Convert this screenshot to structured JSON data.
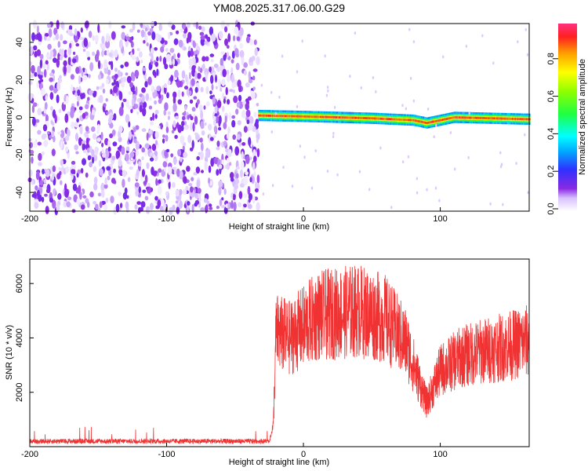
{
  "title": "YM08.2025.317.06.00.G29",
  "chart_data": [
    {
      "type": "heatmap",
      "xlabel": "Height of straight line (km)",
      "ylabel": "Frequency (Hz)",
      "xlim": [
        -200,
        165
      ],
      "ylim": [
        -50,
        50
      ],
      "xticks": [
        "-200",
        "-100",
        "0",
        "100"
      ],
      "yticks": [
        "-40",
        "-20",
        "0",
        "20",
        "40"
      ],
      "colorbar": {
        "label": "Normalized spectral amplitude",
        "range": [
          0,
          1
        ],
        "ticks": [
          "0.0",
          "0.2",
          "0.4",
          "0.6",
          "0.8"
        ]
      },
      "noise_region_x": [
        -200,
        -33
      ],
      "signal_band": {
        "x_range": [
          -33,
          165
        ],
        "center_frequency_hz": [
          {
            "x": -33,
            "y": 1
          },
          {
            "x": 0,
            "y": 0.5
          },
          {
            "x": 50,
            "y": -0.5
          },
          {
            "x": 80,
            "y": -1.5
          },
          {
            "x": 90,
            "y": -3
          },
          {
            "x": 110,
            "y": 0
          },
          {
            "x": 165,
            "y": -1
          }
        ],
        "halfwidth_hz": 3
      }
    },
    {
      "type": "line",
      "xlabel": "Height of straight line (km)",
      "ylabel": "SNR (10 * v/v)",
      "xlim": [
        -200,
        165
      ],
      "ylim": [
        0,
        6900
      ],
      "xticks": [
        "-200",
        "-100",
        "0",
        "100"
      ],
      "yticks": [
        "2000",
        "4000",
        "6000"
      ],
      "series": [
        {
          "color": "#f03232",
          "envelope": [
            {
              "x": -200,
              "y": 200
            },
            {
              "x": -100,
              "y": 200
            },
            {
              "x": -25,
              "y": 200
            },
            {
              "x": -22,
              "y": 800
            },
            {
              "x": -20,
              "y": 4200
            },
            {
              "x": -10,
              "y": 4000
            },
            {
              "x": 10,
              "y": 4800
            },
            {
              "x": 40,
              "y": 5000
            },
            {
              "x": 60,
              "y": 4700
            },
            {
              "x": 75,
              "y": 3800
            },
            {
              "x": 90,
              "y": 1600
            },
            {
              "x": 100,
              "y": 2800
            },
            {
              "x": 115,
              "y": 3300
            },
            {
              "x": 130,
              "y": 3500
            },
            {
              "x": 150,
              "y": 3700
            },
            {
              "x": 165,
              "y": 3900
            }
          ]
        }
      ]
    }
  ]
}
